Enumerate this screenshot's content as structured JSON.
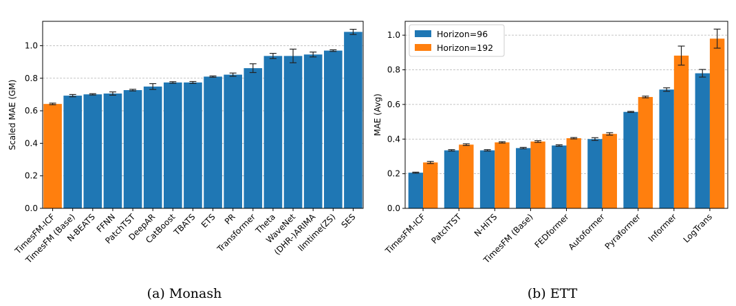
{
  "chart_data": [
    {
      "type": "bar",
      "caption": "(a) Monash",
      "title": "",
      "xlabel": "",
      "ylabel": "Scaled MAE (GM)",
      "ylim": [
        0.0,
        1.15
      ],
      "yticks": [
        0.0,
        0.2,
        0.4,
        0.6,
        0.8,
        1.0
      ],
      "ytick_labels": [
        "0.0",
        "0.2",
        "0.4",
        "0.6",
        "0.8",
        "1.0"
      ],
      "grid": "y-dashed",
      "categories": [
        "TimesFM-ICF",
        "TimesFM (Base)",
        "N-BEATS",
        "FFNN",
        "PatchTST",
        "DeepAR",
        "CatBoost",
        "TBATS",
        "ETS",
        "PR",
        "Transformer",
        "Theta",
        "WaveNet",
        "(DHR-)ARIMA",
        "llmtime(ZS)",
        "SES"
      ],
      "values": [
        0.642,
        0.693,
        0.701,
        0.706,
        0.727,
        0.749,
        0.774,
        0.774,
        0.81,
        0.822,
        0.862,
        0.937,
        0.937,
        0.946,
        0.97,
        1.085
      ],
      "errors": [
        0.005,
        0.007,
        0.004,
        0.01,
        0.005,
        0.018,
        0.005,
        0.006,
        0.004,
        0.01,
        0.027,
        0.016,
        0.042,
        0.015,
        0.005,
        0.016
      ],
      "colors": [
        "#ff7f0e",
        "#1f77b4",
        "#1f77b4",
        "#1f77b4",
        "#1f77b4",
        "#1f77b4",
        "#1f77b4",
        "#1f77b4",
        "#1f77b4",
        "#1f77b4",
        "#1f77b4",
        "#1f77b4",
        "#1f77b4",
        "#1f77b4",
        "#1f77b4",
        "#1f77b4"
      ]
    },
    {
      "type": "bar",
      "caption": "(b) ETT",
      "title": "",
      "xlabel": "",
      "ylabel": "MAE (Avg)",
      "ylim": [
        0.0,
        1.08
      ],
      "yticks": [
        0.0,
        0.2,
        0.4,
        0.6,
        0.8,
        1.0
      ],
      "ytick_labels": [
        "0.0",
        "0.2",
        "0.4",
        "0.6",
        "0.8",
        "1.0"
      ],
      "grid": "y-dashed",
      "legend_position": "top-left",
      "categories": [
        "TimesFM-ICF",
        "PatchTST",
        "N-HiTS",
        "TimesFM (Base)",
        "FEDformer",
        "Autoformer",
        "Pyraformer",
        "Informer",
        "LogTrans"
      ],
      "series": [
        {
          "name": "Horizon=96",
          "color": "#1f77b4",
          "values": [
            0.206,
            0.335,
            0.335,
            0.348,
            0.363,
            0.4,
            0.557,
            0.686,
            0.78
          ],
          "errors": [
            0.003,
            0.004,
            0.004,
            0.004,
            0.004,
            0.008,
            0.003,
            0.01,
            0.022
          ]
        },
        {
          "name": "Horizon=192",
          "color": "#ff7f0e",
          "values": [
            0.265,
            0.368,
            0.381,
            0.386,
            0.405,
            0.43,
            0.643,
            0.882,
            0.98
          ],
          "errors": [
            0.006,
            0.005,
            0.004,
            0.005,
            0.004,
            0.007,
            0.005,
            0.055,
            0.055
          ]
        }
      ]
    }
  ]
}
